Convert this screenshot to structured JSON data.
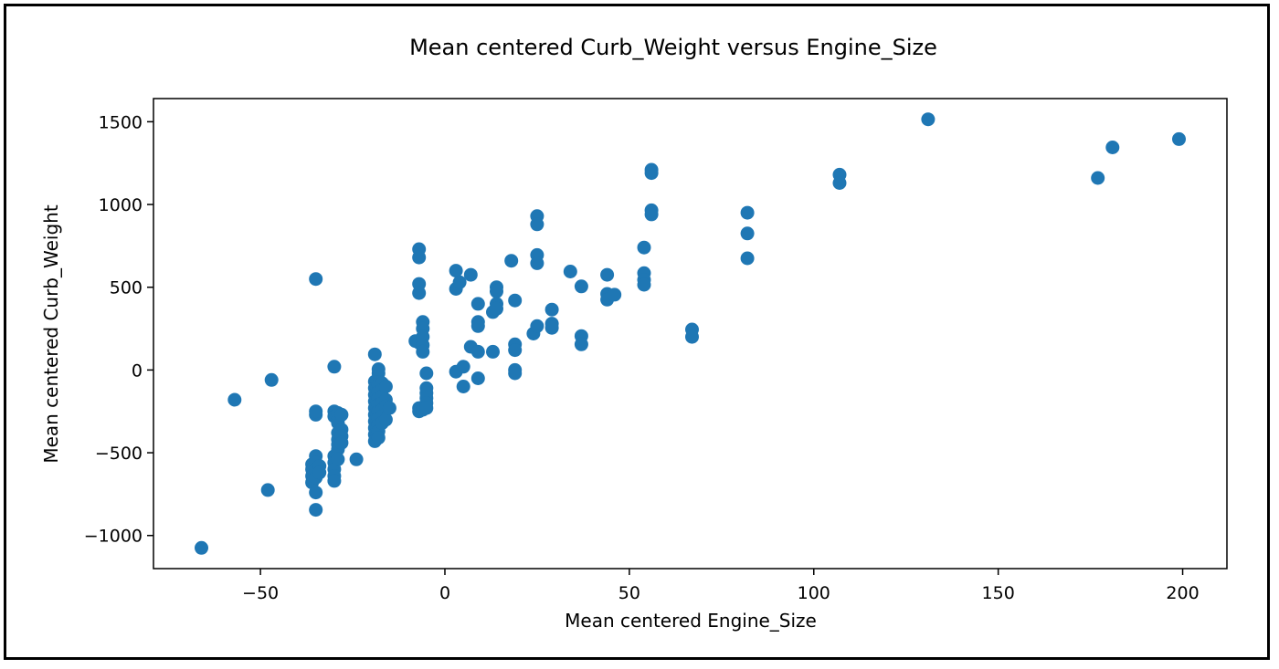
{
  "chart_data": {
    "type": "scatter",
    "title": "Mean centered Curb_Weight versus Engine_Size",
    "xlabel": "Mean centered Engine_Size",
    "ylabel": "Mean centered Curb_Weight",
    "xlim": [
      -79,
      212
    ],
    "ylim": [
      -1200,
      1640
    ],
    "xticks": [
      -50,
      0,
      50,
      100,
      150,
      200
    ],
    "xtick_labels": [
      "−50",
      "0",
      "50",
      "100",
      "150",
      "200"
    ],
    "yticks": [
      -1000,
      -500,
      0,
      500,
      1000,
      1500
    ],
    "ytick_labels": [
      "−1000",
      "−500",
      "0",
      "500",
      "1000",
      "1500"
    ],
    "grid": false,
    "marker_color": "#1f77b4",
    "points": [
      [
        -66,
        -1075
      ],
      [
        -57,
        -180
      ],
      [
        -48,
        -725
      ],
      [
        -47,
        -60
      ],
      [
        -36,
        -570
      ],
      [
        -36,
        -600
      ],
      [
        -36,
        -640
      ],
      [
        -36,
        -680
      ],
      [
        -35,
        -520
      ],
      [
        -35,
        -560
      ],
      [
        -35,
        -600
      ],
      [
        -35,
        -650
      ],
      [
        -35,
        -740
      ],
      [
        -35,
        -845
      ],
      [
        -35,
        550
      ],
      [
        -35,
        -270
      ],
      [
        -35,
        -250
      ],
      [
        -34,
        -580
      ],
      [
        -34,
        -620
      ],
      [
        -30,
        20
      ],
      [
        -30,
        -250
      ],
      [
        -30,
        -280
      ],
      [
        -30,
        -520
      ],
      [
        -30,
        -560
      ],
      [
        -30,
        -600
      ],
      [
        -30,
        -640
      ],
      [
        -30,
        -670
      ],
      [
        -29,
        -300
      ],
      [
        -29,
        -320
      ],
      [
        -29,
        -260
      ],
      [
        -29,
        -380
      ],
      [
        -29,
        -420
      ],
      [
        -29,
        -450
      ],
      [
        -29,
        -480
      ],
      [
        -29,
        -540
      ],
      [
        -28,
        -270
      ],
      [
        -28,
        -360
      ],
      [
        -28,
        -400
      ],
      [
        -28,
        -440
      ],
      [
        -24,
        -540
      ],
      [
        -19,
        95
      ],
      [
        -19,
        -70
      ],
      [
        -19,
        -110
      ],
      [
        -19,
        -150
      ],
      [
        -19,
        -190
      ],
      [
        -19,
        -230
      ],
      [
        -19,
        -270
      ],
      [
        -19,
        -310
      ],
      [
        -19,
        -350
      ],
      [
        -19,
        -390
      ],
      [
        -19,
        -430
      ],
      [
        -18,
        -20
      ],
      [
        -18,
        -90
      ],
      [
        -18,
        -130
      ],
      [
        -18,
        -170
      ],
      [
        -18,
        -210
      ],
      [
        -18,
        -250
      ],
      [
        -18,
        -290
      ],
      [
        -18,
        -330
      ],
      [
        -18,
        -370
      ],
      [
        -18,
        -410
      ],
      [
        -18,
        5
      ],
      [
        -17,
        -80
      ],
      [
        -17,
        -120
      ],
      [
        -17,
        -160
      ],
      [
        -17,
        -200
      ],
      [
        -17,
        -240
      ],
      [
        -17,
        -280
      ],
      [
        -17,
        -320
      ],
      [
        -16,
        -100
      ],
      [
        -16,
        -180
      ],
      [
        -16,
        -220
      ],
      [
        -16,
        -300
      ],
      [
        -15,
        -230
      ],
      [
        -8,
        175
      ],
      [
        -7,
        730
      ],
      [
        -7,
        680
      ],
      [
        -7,
        520
      ],
      [
        -7,
        465
      ],
      [
        -7,
        165
      ],
      [
        -7,
        -230
      ],
      [
        -7,
        -250
      ],
      [
        -6,
        -240
      ],
      [
        -6,
        290
      ],
      [
        -6,
        250
      ],
      [
        -6,
        200
      ],
      [
        -6,
        150
      ],
      [
        -6,
        110
      ],
      [
        -5,
        -20
      ],
      [
        -5,
        -110
      ],
      [
        -5,
        -140
      ],
      [
        -5,
        -170
      ],
      [
        -5,
        -200
      ],
      [
        -5,
        -230
      ],
      [
        3,
        600
      ],
      [
        3,
        490
      ],
      [
        3,
        -10
      ],
      [
        4,
        530
      ],
      [
        5,
        20
      ],
      [
        5,
        -100
      ],
      [
        7,
        575
      ],
      [
        7,
        140
      ],
      [
        9,
        400
      ],
      [
        9,
        290
      ],
      [
        9,
        265
      ],
      [
        9,
        110
      ],
      [
        9,
        -50
      ],
      [
        13,
        350
      ],
      [
        13,
        110
      ],
      [
        14,
        500
      ],
      [
        14,
        475
      ],
      [
        14,
        400
      ],
      [
        14,
        370
      ],
      [
        18,
        660
      ],
      [
        19,
        420
      ],
      [
        19,
        155
      ],
      [
        19,
        120
      ],
      [
        19,
        0
      ],
      [
        19,
        -20
      ],
      [
        24,
        220
      ],
      [
        25,
        930
      ],
      [
        25,
        880
      ],
      [
        25,
        695
      ],
      [
        25,
        645
      ],
      [
        25,
        265
      ],
      [
        29,
        365
      ],
      [
        29,
        280
      ],
      [
        29,
        255
      ],
      [
        34,
        595
      ],
      [
        37,
        505
      ],
      [
        37,
        205
      ],
      [
        37,
        155
      ],
      [
        44,
        575
      ],
      [
        44,
        460
      ],
      [
        44,
        425
      ],
      [
        46,
        455
      ],
      [
        54,
        740
      ],
      [
        54,
        585
      ],
      [
        54,
        545
      ],
      [
        54,
        515
      ],
      [
        56,
        1210
      ],
      [
        56,
        1190
      ],
      [
        56,
        965
      ],
      [
        56,
        940
      ],
      [
        67,
        245
      ],
      [
        67,
        200
      ],
      [
        82,
        950
      ],
      [
        82,
        825
      ],
      [
        82,
        675
      ],
      [
        107,
        1180
      ],
      [
        107,
        1130
      ],
      [
        131,
        1515
      ],
      [
        177,
        1160
      ],
      [
        181,
        1345
      ],
      [
        199,
        1395
      ]
    ]
  }
}
